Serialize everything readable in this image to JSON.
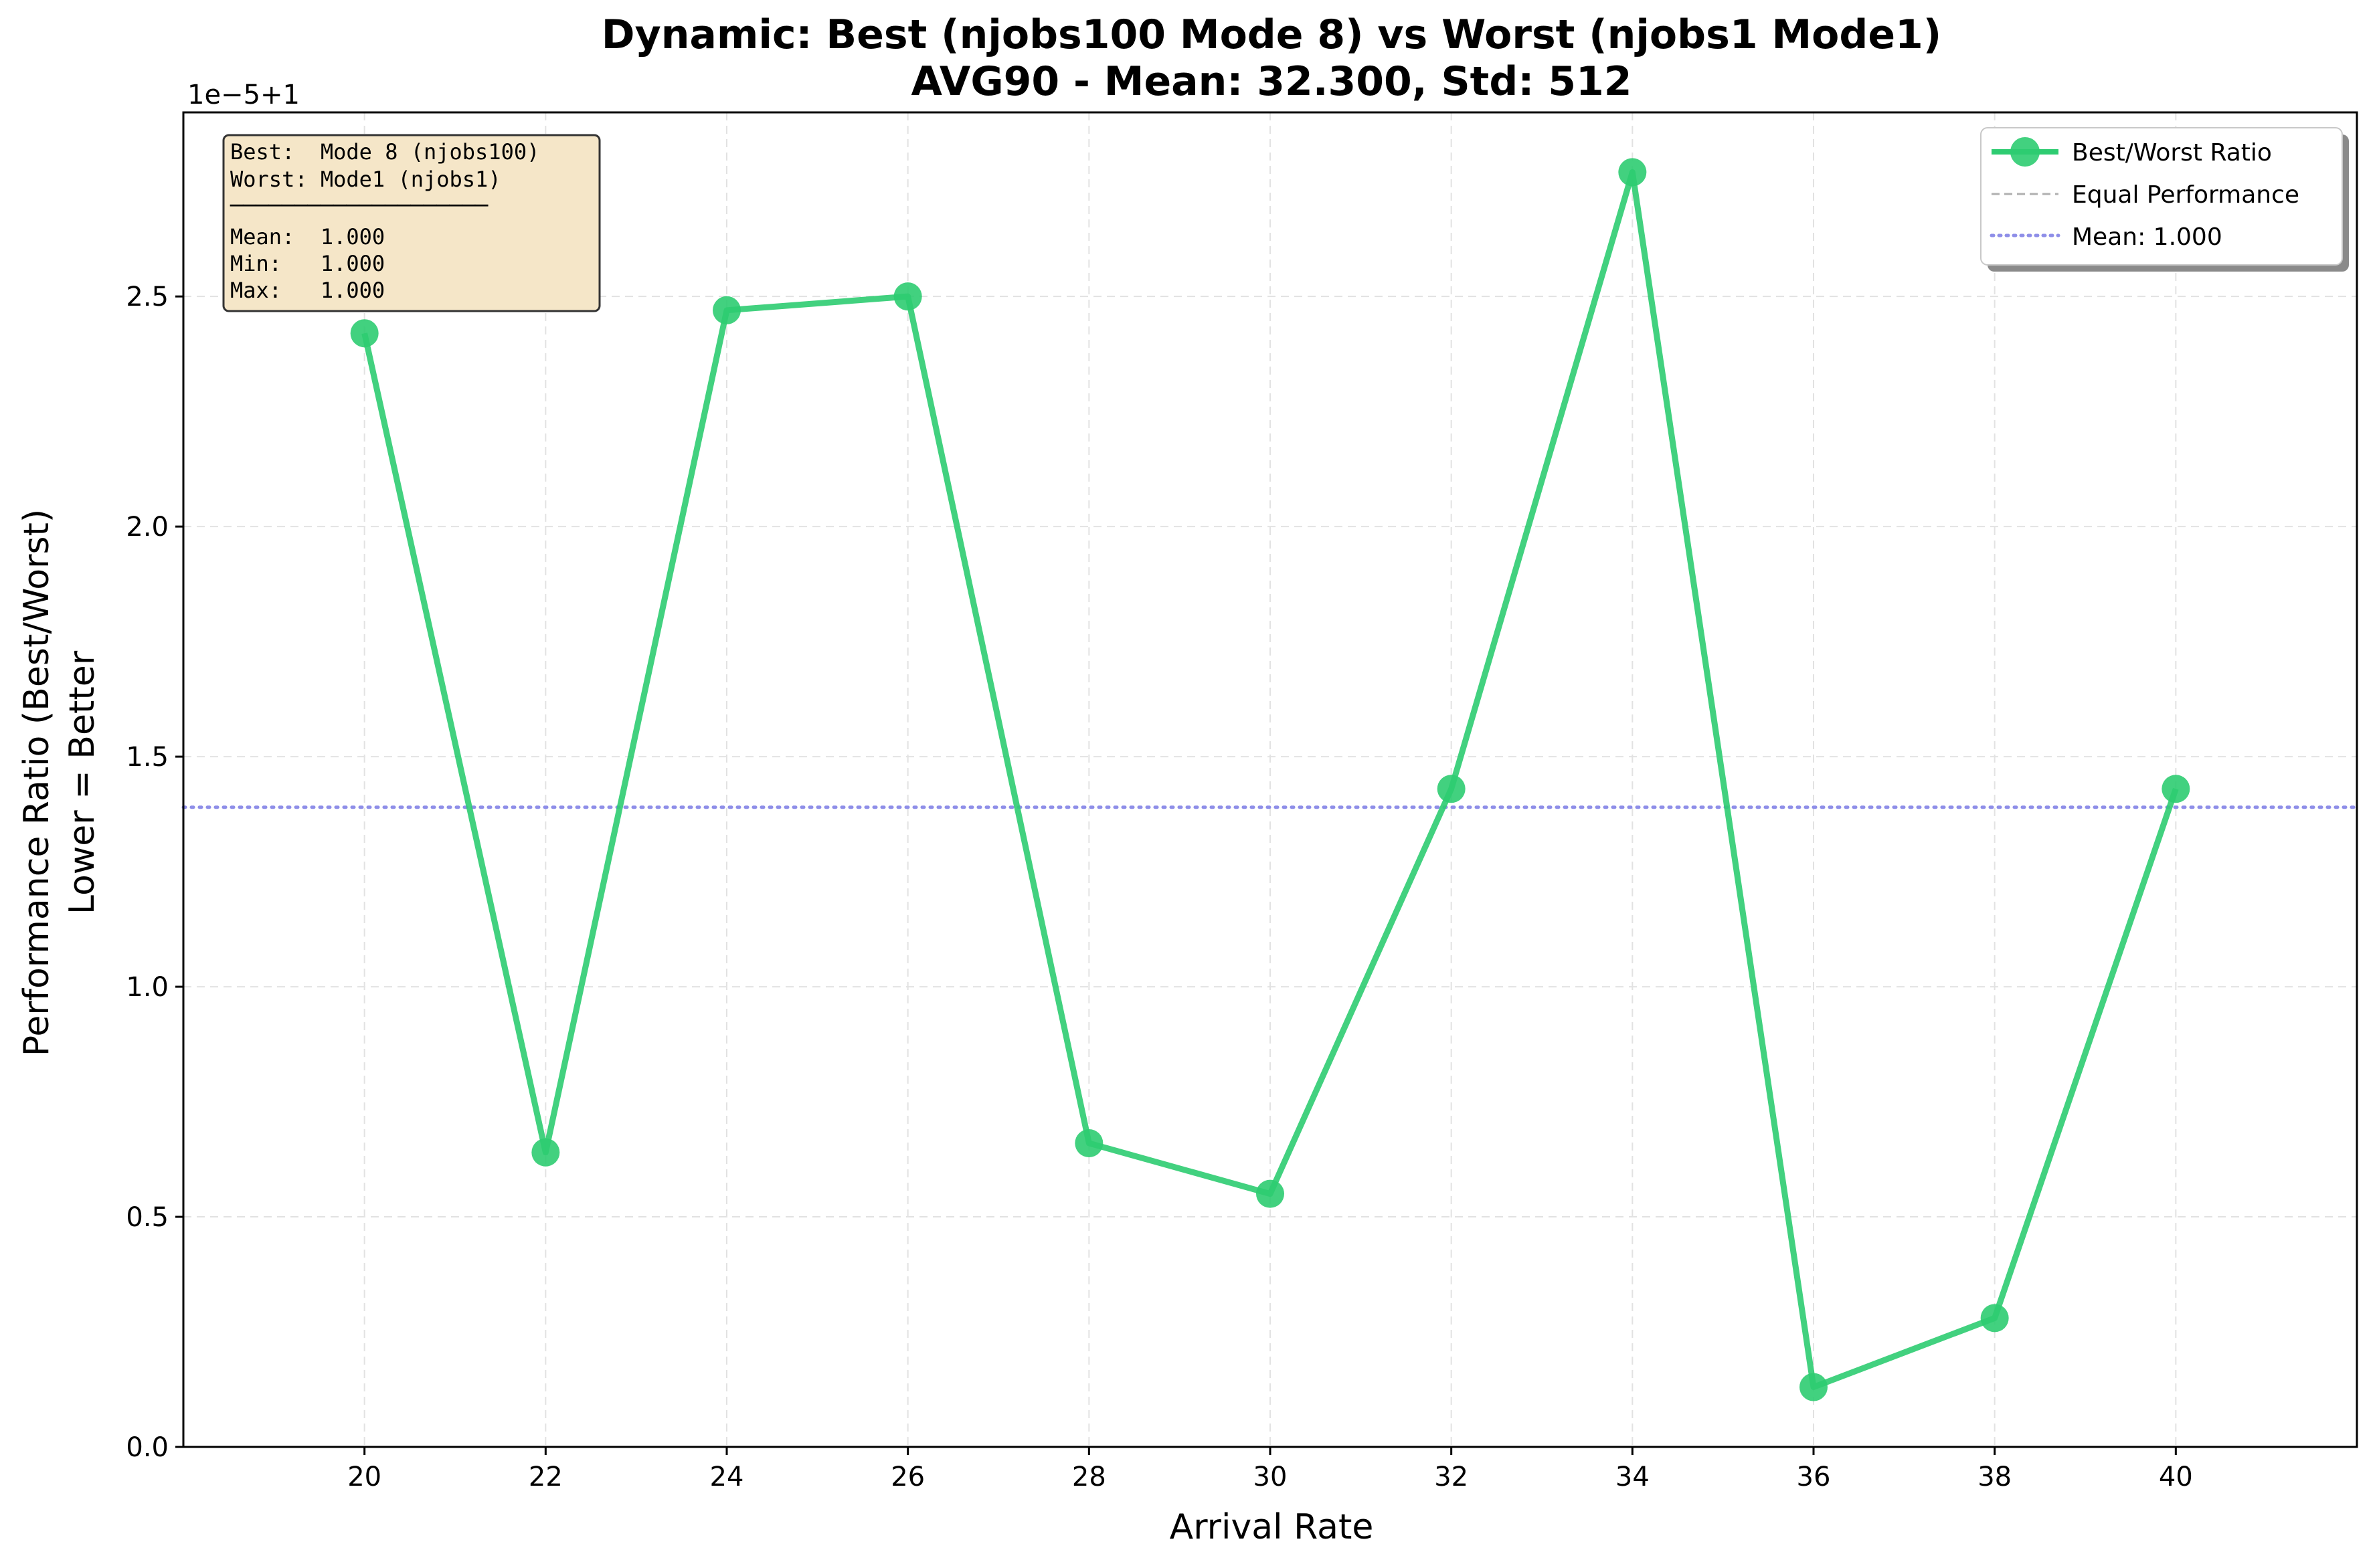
{
  "chart_data": {
    "type": "line",
    "title_line1": "Dynamic: Best (njobs100 Mode 8) vs Worst (njobs1 Mode1)",
    "title_line2": "AVG90 - Mean: 32.300, Std: 512",
    "xlabel": "Arrival Rate",
    "ylabel_line1": "Performance Ratio (Best/Worst)",
    "ylabel_line2": "Lower = Better",
    "y_offset_label": "1e−5+1",
    "x": [
      20,
      22,
      24,
      26,
      28,
      30,
      32,
      34,
      36,
      38,
      40
    ],
    "x_tick_labels": [
      "20",
      "22",
      "24",
      "26",
      "28",
      "30",
      "32",
      "34",
      "36",
      "38",
      "40"
    ],
    "xlim": [
      18.0,
      42.0
    ],
    "y_tick_values": [
      0.0,
      0.5,
      1.0,
      1.5,
      2.0,
      2.5
    ],
    "y_tick_labels": [
      "0.0",
      "0.5",
      "1.0",
      "1.5",
      "2.0",
      "2.5"
    ],
    "ylim": [
      0.0,
      2.9
    ],
    "y_units_note": "values shown as (ratio - 1) x 1e5, matching the axis offset 1e-5+1",
    "series": [
      {
        "name": "Best/Worst Ratio",
        "color": "#2ecc71",
        "values": [
          2.42,
          0.64,
          2.47,
          2.5,
          0.66,
          0.55,
          1.43,
          2.77,
          0.13,
          0.28,
          1.43
        ]
      }
    ],
    "mean_line": {
      "value": 1.39,
      "color": "#8e8ee8"
    },
    "grid": true,
    "legend": {
      "placement": "top-right",
      "entries": [
        {
          "label": "Best/Worst Ratio",
          "style": "line-marker",
          "color": "#2ecc71"
        },
        {
          "label": "Equal Performance",
          "style": "dashed",
          "color": "#b0b0b0"
        },
        {
          "label": "Mean: 1.000",
          "style": "dotted",
          "color": "#8e8ee8"
        }
      ]
    },
    "stats_box": {
      "lines": [
        "Best:  Mode 8 (njobs100)",
        "Worst: Mode1 (njobs1)",
        "────────────────────",
        "Mean:  1.000",
        "Min:   1.000",
        "Max:   1.000"
      ],
      "background": "#f5e6c8"
    }
  }
}
